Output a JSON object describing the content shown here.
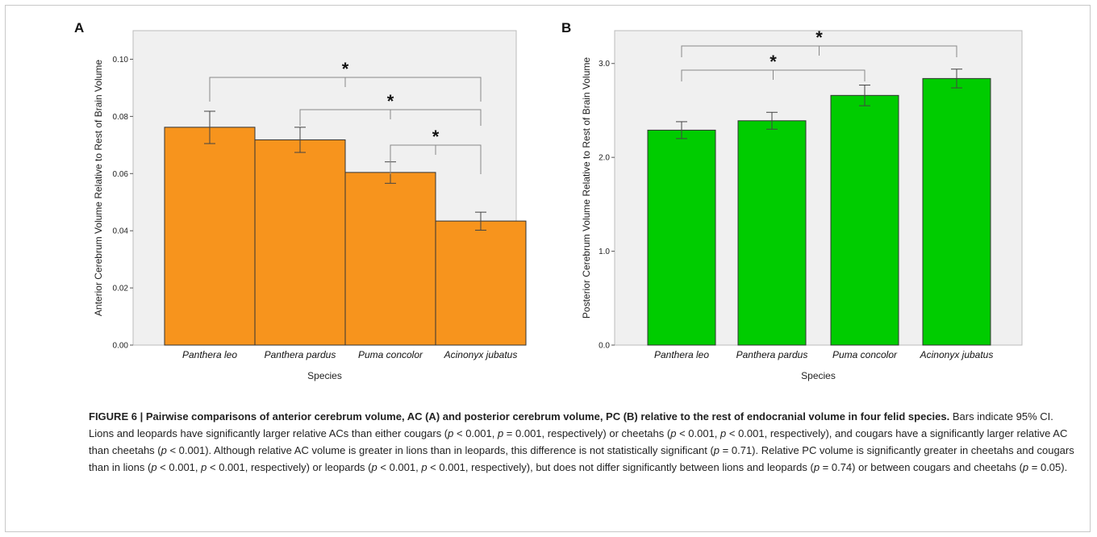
{
  "chart_data": [
    {
      "panel": "A",
      "type": "bar",
      "categories": [
        "Panthera leo",
        "Panthera pardus",
        "Puma concolor",
        "Acinonyx jubatus"
      ],
      "values": [
        0.0762,
        0.0718,
        0.0604,
        0.0434
      ],
      "error_low": [
        0.0705,
        0.0674,
        0.0566,
        0.0402
      ],
      "error_high": [
        0.0818,
        0.0762,
        0.0641,
        0.0465
      ],
      "xlabel": "Species",
      "ylabel": "Anterior Cerebrum Volume Relative to Rest of Brain Volume",
      "ylim": [
        0,
        0.11
      ],
      "yticks": [
        "0.00",
        "0.02",
        "0.04",
        "0.06",
        "0.08",
        "0.10"
      ],
      "ytick_values": [
        0,
        0.02,
        0.04,
        0.06,
        0.08,
        0.1
      ],
      "bar_color": "#f7941d",
      "significance": [
        {
          "from": 0,
          "to": 3,
          "label": "*"
        },
        {
          "from": 1,
          "to": 3,
          "label": "*"
        },
        {
          "from": 2,
          "to": 3,
          "label": "*"
        }
      ]
    },
    {
      "panel": "B",
      "type": "bar",
      "categories": [
        "Panthera leo",
        "Panthera pardus",
        "Puma concolor",
        "Acinonyx jubatus"
      ],
      "values": [
        2.29,
        2.39,
        2.66,
        2.84
      ],
      "error_low": [
        2.2,
        2.3,
        2.55,
        2.74
      ],
      "error_high": [
        2.38,
        2.48,
        2.77,
        2.94
      ],
      "xlabel": "Species",
      "ylabel": "Posterior Cerebrum Volume Relative to Rest of Brain Volume",
      "ylim": [
        0,
        3.35
      ],
      "yticks": [
        "0.0",
        "1.0",
        "2.0",
        "3.0"
      ],
      "ytick_values": [
        0,
        1,
        2,
        3
      ],
      "bar_color": "#00cc00",
      "significance": [
        {
          "from": 0,
          "to": 2,
          "label": "*"
        },
        {
          "from": 0,
          "to": 3,
          "label": "*"
        }
      ]
    }
  ],
  "caption": {
    "title": "FIGURE 6 | Pairwise comparisons of anterior cerebrum volume, AC (A) and posterior cerebrum volume, PC (B) relative to the rest of endocranial volume in four felid species.",
    "body_html": " Bars indicate 95% CI. Lions and leopards have significantly larger relative ACs than either cougars (<i>p</i> &lt; 0.001, <i>p</i> = 0.001, respectively) or cheetahs (<i>p</i> &lt; 0.001, <i>p</i> &lt; 0.001, respectively), and cougars have a significantly larger relative AC than cheetahs (<i>p</i> &lt; 0.001). Although relative AC volume is greater in lions than in leopards, this difference is not statistically significant (<i>p</i> = 0.71). Relative PC volume is significantly greater in cheetahs and cougars than in lions (<i>p</i> &lt; 0.001, <i>p</i> &lt; 0.001, respectively) or leopards (<i>p</i> &lt; 0.001, <i>p</i> &lt; 0.001, respectively), but does not differ significantly between lions and leopards (<i>p</i> = 0.74) or between cougars and cheetahs (<i>p</i> = 0.05)."
  },
  "colors": {
    "plot_bg": "#f0f0f0",
    "bar_stroke": "#333333"
  }
}
